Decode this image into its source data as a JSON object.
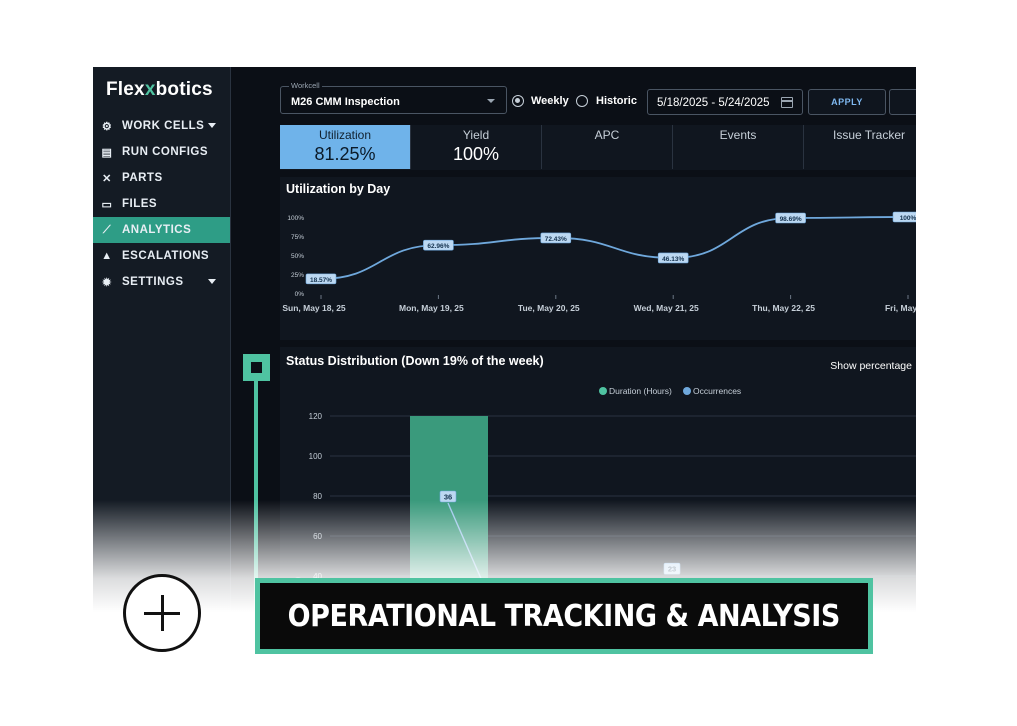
{
  "logo": {
    "text_a": "Flex",
    "text_b": "x",
    "text_c": "botics"
  },
  "sidebar": {
    "items": [
      {
        "label": "WORK CELLS",
        "icon": "robot-arm-icon",
        "glyph": "⚙",
        "has_caret": true
      },
      {
        "label": "RUN CONFIGS",
        "icon": "document-icon",
        "glyph": "▤",
        "has_caret": false
      },
      {
        "label": "PARTS",
        "icon": "tools-icon",
        "glyph": "✕",
        "has_caret": false
      },
      {
        "label": "FILES",
        "icon": "folder-icon",
        "glyph": "▭",
        "has_caret": false
      },
      {
        "label": "ANALYTICS",
        "icon": "trend-icon",
        "glyph": "⟋",
        "has_caret": false,
        "active": true
      },
      {
        "label": "ESCALATIONS",
        "icon": "warning-icon",
        "glyph": "▲",
        "has_caret": false
      },
      {
        "label": "SETTINGS",
        "icon": "gear-icon",
        "glyph": "✹",
        "has_caret": true
      }
    ]
  },
  "controls": {
    "workcell_legend": "Workcell",
    "workcell_value": "M26 CMM Inspection",
    "radio_weekly": "Weekly",
    "radio_historic": "Historic",
    "date_range": "5/18/2025 - 5/24/2025",
    "apply_label": "APPLY"
  },
  "tabs": [
    {
      "label": "Utilization",
      "value": "81.25%",
      "active": true
    },
    {
      "label": "Yield",
      "value": "100%"
    },
    {
      "label": "APC",
      "value": ""
    },
    {
      "label": "Events",
      "value": ""
    },
    {
      "label": "Issue Tracker",
      "value": ""
    }
  ],
  "utilization_panel": {
    "title": "Utilization by Day"
  },
  "status_panel": {
    "title": "Status Distribution (Down 19% of the week)",
    "show_percentage": "Show percentage"
  },
  "banner": {
    "text": "OPERATIONAL TRACKING & ANALYSIS"
  },
  "colors": {
    "accent": "#4fc3a1",
    "active_tab": "#6fb3ea",
    "line": "#6fa8dc",
    "bar": "#3a9a7c"
  },
  "chart_data": [
    {
      "type": "line",
      "title": "Utilization by Day",
      "x": [
        "Sun, May 18, 25",
        "Mon, May 19, 25",
        "Tue, May 20, 25",
        "Wed, May 21, 25",
        "Thu, May 22, 25",
        "Fri, May"
      ],
      "values": [
        18.57,
        62.96,
        72.43,
        46.13,
        98.69,
        100
      ],
      "data_labels": [
        "18.57%",
        "62.96%",
        "72.43%",
        "46.13%",
        "98.69%",
        "100%"
      ],
      "yticks": [
        "0%",
        "25%",
        "50%",
        "75%",
        "100%"
      ],
      "ylim": [
        0,
        100
      ],
      "grid": false
    },
    {
      "type": "bar",
      "title": "Status Distribution (Down 19% of the week)",
      "series": [
        {
          "name": "Duration (Hours)",
          "color": "#4fc3a1",
          "values": [
            120
          ]
        },
        {
          "name": "Occurrences",
          "color": "#6fa8dc",
          "values": [
            36,
            23
          ]
        }
      ],
      "ylabel": "Duration (Hours)",
      "yticks": [
        "40",
        "60",
        "80",
        "100",
        "120"
      ],
      "legend": "top-center",
      "grid": true
    }
  ]
}
